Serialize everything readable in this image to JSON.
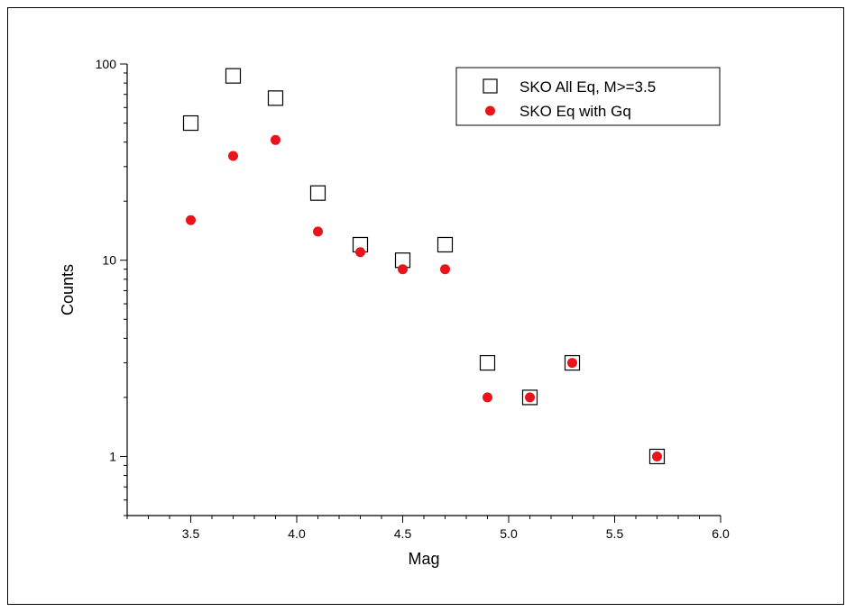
{
  "chart_data": {
    "type": "scatter",
    "title": "",
    "xlabel": "Mag",
    "ylabel": "Counts",
    "xlim": [
      3.2,
      6.0
    ],
    "ylim": [
      0.5,
      100
    ],
    "yscale": "log",
    "x_ticks": [
      "3.5",
      "4.0",
      "4.5",
      "5.0",
      "5.5",
      "6.0"
    ],
    "x_tick_values": [
      3.5,
      4.0,
      4.5,
      5.0,
      5.5,
      6.0
    ],
    "y_ticks": [
      "1",
      "10",
      "100"
    ],
    "y_tick_values": [
      1,
      10,
      100
    ],
    "grid": false,
    "legend_position": "top-right",
    "series": [
      {
        "name": "SKO All Eq, M>=3.5",
        "marker": "open-square",
        "color": "#000000",
        "x": [
          3.5,
          3.7,
          3.9,
          4.1,
          4.3,
          4.5,
          4.7,
          4.9,
          5.1,
          5.3,
          5.7
        ],
        "y": [
          50,
          87,
          67,
          22,
          12,
          10,
          12,
          3,
          2,
          3,
          1
        ]
      },
      {
        "name": "SKO Eq with Gq",
        "marker": "filled-circle",
        "color": "#e8141a",
        "x": [
          3.5,
          3.7,
          3.9,
          4.1,
          4.3,
          4.5,
          4.7,
          4.9,
          5.1,
          5.3,
          5.7
        ],
        "y": [
          16,
          34,
          41,
          14,
          11,
          9,
          9,
          2,
          2,
          3,
          1
        ]
      }
    ]
  }
}
